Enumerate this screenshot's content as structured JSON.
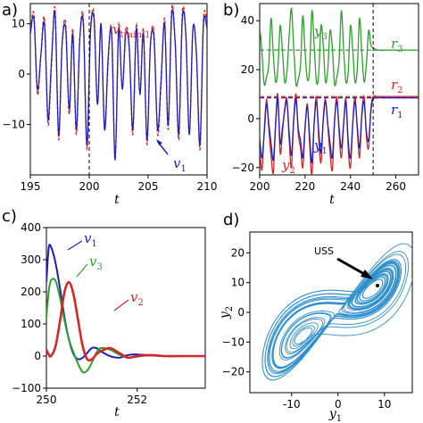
{
  "panels": {
    "a": {
      "label": "a)",
      "xlabel": "t",
      "ann_vtrain": "v",
      "ann_vtrain_sub": "train,1",
      "ann_v1": "v",
      "ann_v1_sub": "1"
    },
    "b": {
      "label": "b)",
      "xlabel": "t",
      "ann": [
        {
          "key": "y3",
          "text": "y",
          "sub": "3",
          "color": "#2ca02c"
        },
        {
          "key": "r3",
          "text": "r",
          "sub": "3",
          "color": "#2ca02c"
        },
        {
          "key": "r2",
          "text": "r",
          "sub": "2",
          "color": "#d62728"
        },
        {
          "key": "r1",
          "text": "r",
          "sub": "1",
          "color": "#1f1fbf"
        },
        {
          "key": "y1",
          "text": "y",
          "sub": "1",
          "color": "#1f1fbf"
        },
        {
          "key": "y2",
          "text": "y",
          "sub": "2",
          "color": "#d62728"
        }
      ]
    },
    "c": {
      "label": "c)",
      "xlabel": "t",
      "ann": [
        {
          "key": "v1",
          "text": "v",
          "sub": "1",
          "color": "#1f1fbf"
        },
        {
          "key": "v3",
          "text": "v",
          "sub": "3",
          "color": "#2ca02c"
        },
        {
          "key": "v2",
          "text": "v",
          "sub": "2",
          "color": "#d62728"
        }
      ]
    },
    "d": {
      "label": "d)",
      "xlabel": "y",
      "xlabel_sub": "1",
      "ylabel": "y",
      "ylabel_sub": "2",
      "uss": "USS"
    }
  },
  "colors": {
    "blue": "#1f1fbf",
    "red": "#d62728",
    "green": "#2ca02c",
    "attractor": "#2f8fcf"
  },
  "chart_data": [
    {
      "id": "a",
      "type": "line",
      "xlim": [
        195,
        210
      ],
      "ylim": [
        -20,
        14
      ],
      "xticks": [
        195,
        200,
        205,
        210
      ],
      "yticks": [
        -10,
        0,
        10
      ],
      "vline": 200,
      "series": [
        {
          "name": "v_train,1",
          "style": "dashed",
          "color": "#d62728",
          "x": [
            195,
            195.3,
            195.6,
            195.9,
            196.2,
            196.5,
            196.8,
            197.1,
            197.4,
            197.7,
            198,
            198.3,
            198.6,
            198.9,
            199.2,
            199.5,
            199.8,
            200.1,
            200.4,
            200.7,
            201,
            201.3,
            201.6,
            201.9,
            202.2,
            202.5,
            202.8,
            203.1,
            203.4,
            203.7,
            204,
            204.3,
            204.6,
            204.9,
            205.2,
            205.5,
            205.8,
            206.1,
            206.4,
            206.7,
            207,
            207.3,
            207.6,
            207.9,
            208.2,
            208.5,
            208.8,
            209.1,
            209.4,
            209.7,
            210
          ],
          "y": [
            8,
            12,
            -4,
            4,
            11,
            -10,
            2,
            13,
            -13,
            6,
            10,
            -8,
            9,
            -12,
            7,
            11,
            -15,
            8,
            12,
            -6,
            10,
            -11,
            2,
            9,
            -17,
            10,
            -3,
            9,
            5,
            -12,
            10,
            -4,
            9,
            -14,
            6,
            8,
            -12,
            -2,
            11,
            -11,
            13,
            6,
            -13,
            12,
            8,
            -12,
            9,
            4,
            -15,
            11,
            10
          ]
        },
        {
          "name": "v_1",
          "style": "solid",
          "color": "#1f1fbf",
          "x": [
            195,
            195.3,
            195.6,
            195.9,
            196.2,
            196.5,
            196.8,
            197.1,
            197.4,
            197.7,
            198,
            198.3,
            198.6,
            198.9,
            199.2,
            199.5,
            199.8,
            200.1,
            200.4,
            200.7,
            201,
            201.3,
            201.6,
            201.9,
            202.2,
            202.5,
            202.8,
            203.1,
            203.4,
            203.7,
            204,
            204.3,
            204.6,
            204.9,
            205.2,
            205.5,
            205.8,
            206.1,
            206.4,
            206.7,
            207,
            207.3,
            207.6,
            207.9,
            208.2,
            208.5,
            208.8,
            209.1,
            209.4,
            209.7,
            210
          ],
          "y": [
            8,
            11,
            -3,
            4,
            10,
            -9,
            3,
            12,
            -12,
            6,
            9,
            -7,
            8,
            -11,
            7,
            10,
            -14,
            8,
            11,
            -6,
            10,
            -11,
            3,
            8,
            -17,
            9,
            -3,
            8,
            5,
            -11,
            9,
            -4,
            8,
            -13,
            6,
            7,
            -11,
            -1,
            10,
            -10,
            12,
            6,
            -12,
            11,
            8,
            -12,
            9,
            4,
            -14,
            10,
            9
          ]
        }
      ]
    },
    {
      "id": "b",
      "type": "line",
      "xlim": [
        200,
        270
      ],
      "ylim": [
        -23,
        47
      ],
      "xticks": [
        200,
        220,
        240,
        260
      ],
      "yticks": [
        -20,
        0,
        20,
        40
      ],
      "vline": 250,
      "hlines": [
        {
          "y": 28,
          "color": "#2ca02c"
        },
        {
          "y": 9,
          "color": "#d62728"
        },
        {
          "y": 8.5,
          "color": "#1f1fbf"
        }
      ],
      "series": [
        {
          "name": "y_3",
          "color": "#2ca02c",
          "x": [
            200,
            201,
            202,
            203,
            204,
            205,
            206,
            207,
            208,
            209,
            210,
            211,
            212,
            213,
            214,
            215,
            216,
            217,
            218,
            219,
            220,
            221,
            222,
            223,
            224,
            225,
            226,
            227,
            228,
            229,
            230,
            231,
            232,
            233,
            234,
            235,
            236,
            237,
            238,
            239,
            240,
            241,
            242,
            243,
            244,
            245,
            246,
            247,
            248,
            249,
            250,
            252,
            256,
            260,
            270
          ],
          "y": [
            38,
            27,
            14,
            17,
            22,
            41,
            26,
            15,
            20,
            38,
            28,
            15,
            19,
            34,
            45,
            29,
            14,
            16,
            22,
            42,
            27,
            16,
            20,
            44,
            30,
            15,
            18,
            38,
            30,
            15,
            20,
            36,
            29,
            14,
            17,
            24,
            44,
            28,
            15,
            19,
            38,
            28,
            15,
            20,
            41,
            27,
            15,
            22,
            36,
            30,
            29,
            28,
            28,
            28,
            28
          ]
        },
        {
          "name": "y_2",
          "color": "#d62728",
          "x": [
            200,
            201,
            202,
            203,
            204,
            205,
            206,
            207,
            208,
            209,
            210,
            211,
            212,
            213,
            214,
            215,
            216,
            217,
            218,
            219,
            220,
            221,
            222,
            223,
            224,
            225,
            226,
            227,
            228,
            229,
            230,
            231,
            232,
            233,
            234,
            235,
            236,
            237,
            238,
            239,
            240,
            241,
            242,
            243,
            244,
            245,
            246,
            247,
            248,
            249,
            250,
            252,
            256,
            260,
            270
          ],
          "y": [
            -12,
            -21,
            -5,
            8,
            -4,
            -15,
            -22,
            -2,
            10,
            -14,
            -6,
            4,
            8,
            -9,
            -20,
            0,
            10,
            -6,
            -12,
            -20,
            -4,
            6,
            -10,
            -23,
            -2,
            9,
            -8,
            -18,
            0,
            8,
            -3,
            -14,
            -21,
            -1,
            9,
            -6,
            -16,
            -2,
            8,
            -12,
            -20,
            -2,
            9,
            -4,
            -16,
            2,
            9,
            -7,
            -12,
            4,
            9,
            9,
            9,
            9,
            9
          ]
        },
        {
          "name": "y_1",
          "color": "#1f1fbf",
          "x": [
            200,
            201,
            202,
            203,
            204,
            205,
            206,
            207,
            208,
            209,
            210,
            211,
            212,
            213,
            214,
            215,
            216,
            217,
            218,
            219,
            220,
            221,
            222,
            223,
            224,
            225,
            226,
            227,
            228,
            229,
            230,
            231,
            232,
            233,
            234,
            235,
            236,
            237,
            238,
            239,
            240,
            241,
            242,
            243,
            244,
            245,
            246,
            247,
            248,
            249,
            250,
            252,
            256,
            260,
            270
          ],
          "y": [
            -8,
            -16,
            -6,
            6,
            -2,
            -10,
            -17,
            -3,
            8,
            -10,
            -4,
            3,
            7,
            -6,
            -15,
            -1,
            8,
            -4,
            -9,
            -16,
            -3,
            5,
            -7,
            -18,
            -2,
            7,
            -5,
            -14,
            -1,
            7,
            -2,
            -10,
            -16,
            -1,
            7,
            -4,
            -12,
            -2,
            7,
            -9,
            -16,
            -2,
            7,
            -3,
            -12,
            1,
            7,
            -5,
            -9,
            3,
            8,
            8.5,
            8.5,
            8.5,
            8.5
          ]
        }
      ]
    },
    {
      "id": "c",
      "type": "line",
      "xlim": [
        250,
        253.5
      ],
      "ylim": [
        -100,
        400
      ],
      "xticks": [
        250,
        252
      ],
      "yticks": [
        -100,
        0,
        100,
        200,
        300,
        400
      ],
      "series": [
        {
          "name": "v_1",
          "color": "#1f1fbf",
          "x": [
            250,
            250.05,
            250.1,
            250.2,
            250.3,
            250.4,
            250.5,
            250.6,
            250.7,
            250.8,
            250.9,
            251,
            251.1,
            251.2,
            251.4,
            251.6,
            251.8,
            252,
            252.3,
            252.6,
            253,
            253.5
          ],
          "y": [
            230,
            335,
            340,
            290,
            210,
            120,
            50,
            5,
            -10,
            -5,
            10,
            25,
            25,
            15,
            0,
            -5,
            3,
            5,
            2,
            0,
            0,
            0
          ]
        },
        {
          "name": "v_3",
          "color": "#2ca02c",
          "x": [
            250,
            250.05,
            250.1,
            250.2,
            250.3,
            250.4,
            250.5,
            250.6,
            250.7,
            250.8,
            250.9,
            251,
            251.1,
            251.2,
            251.4,
            251.6,
            251.8,
            252,
            252.3,
            252.6,
            253,
            253.5
          ],
          "y": [
            120,
            200,
            235,
            235,
            180,
            110,
            50,
            10,
            -25,
            -50,
            -45,
            -20,
            10,
            25,
            20,
            5,
            -5,
            -2,
            3,
            0,
            0,
            0
          ]
        },
        {
          "name": "v_2",
          "color": "#d62728",
          "x": [
            250,
            250.05,
            250.1,
            250.2,
            250.3,
            250.4,
            250.5,
            250.6,
            250.7,
            250.8,
            250.9,
            251,
            251.1,
            251.2,
            251.4,
            251.6,
            251.8,
            252,
            252.3,
            252.6,
            253,
            253.5
          ],
          "y": [
            20,
            5,
            0,
            30,
            110,
            200,
            230,
            190,
            110,
            30,
            -10,
            -10,
            5,
            15,
            25,
            10,
            -5,
            0,
            3,
            0,
            0,
            0
          ]
        }
      ]
    },
    {
      "id": "d",
      "type": "line",
      "xlim": [
        -19,
        16
      ],
      "ylim": [
        -27,
        27
      ],
      "xticks": [
        -10,
        0,
        10
      ],
      "yticks": [
        -20,
        -10,
        0,
        10,
        20
      ],
      "point": {
        "label": "USS",
        "x": 8.5,
        "y": 9
      }
    }
  ]
}
